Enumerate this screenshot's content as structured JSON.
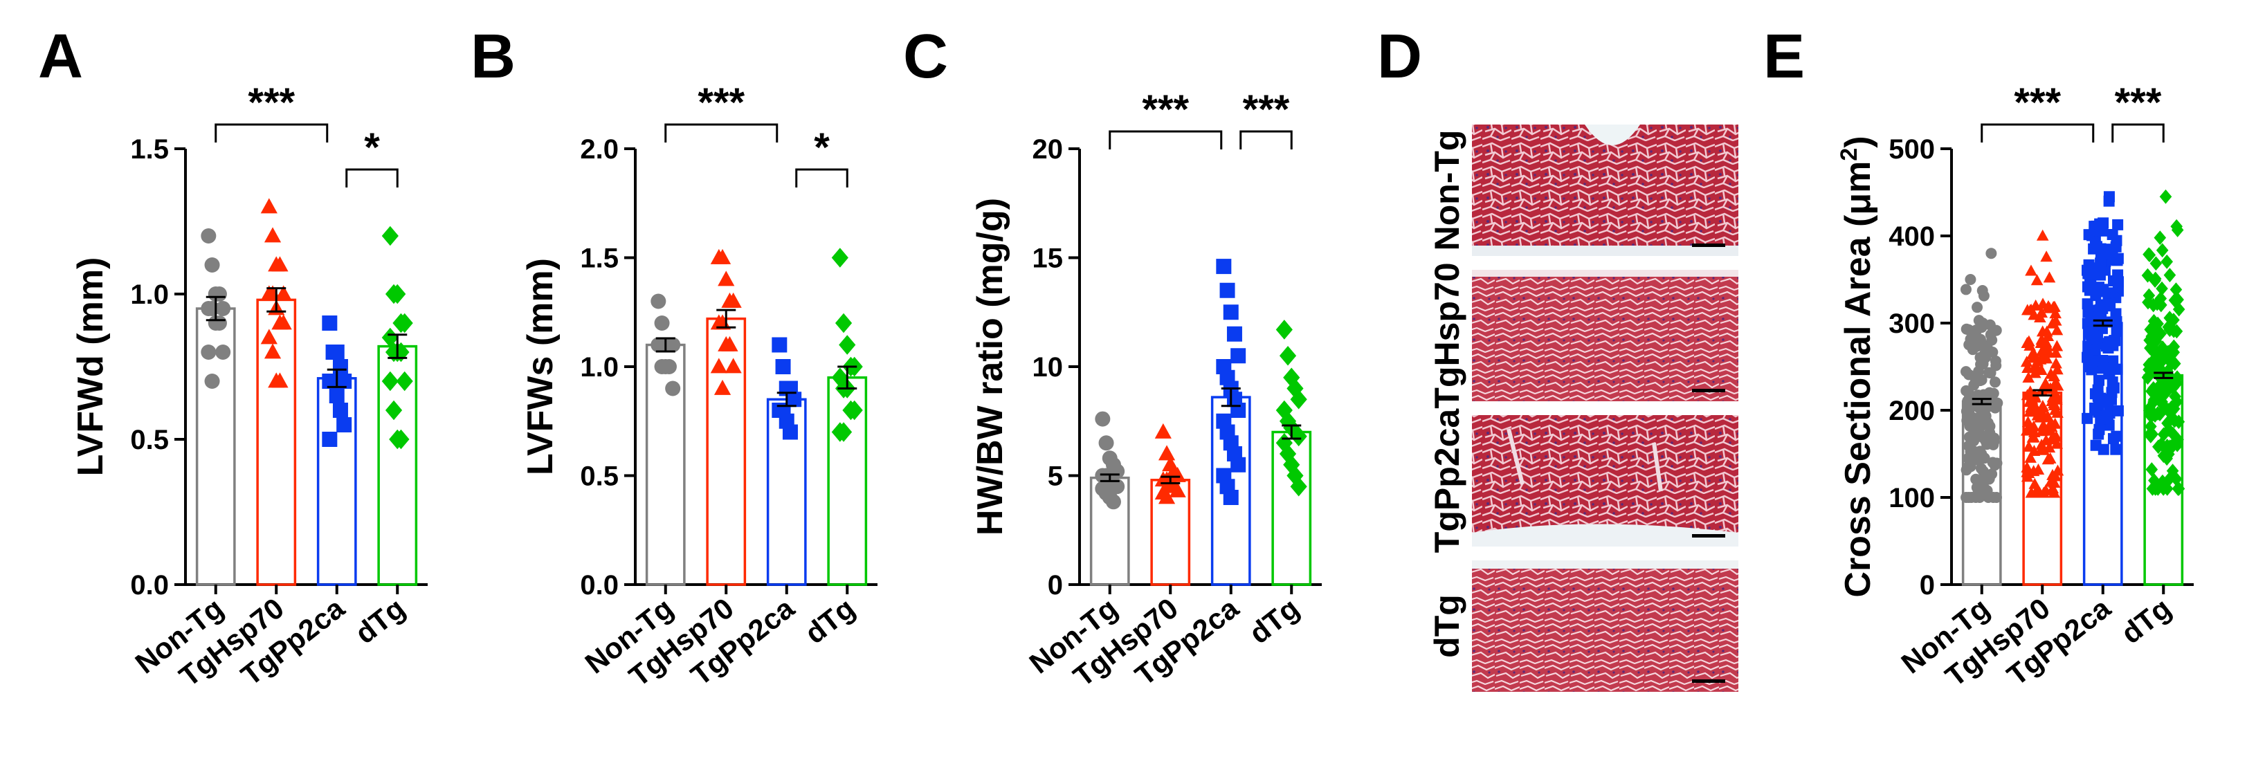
{
  "chart_data": [
    {
      "panel": "A",
      "type": "bar",
      "title": "",
      "xlabel": "",
      "ylabel": "LVFWd (mm)",
      "ylim": [
        0,
        1.5
      ],
      "yticks": [
        "0.0",
        "0.5",
        "1.0",
        "1.5"
      ],
      "categories": [
        "Non-Tg",
        "TgHsp70",
        "TgPp2ca",
        "dTg"
      ],
      "values": [
        0.95,
        0.98,
        0.71,
        0.82
      ],
      "errors": [
        0.04,
        0.04,
        0.03,
        0.04
      ],
      "points": [
        [
          1.2,
          1.1,
          1.0,
          1.0,
          0.95,
          0.95,
          0.95,
          0.9,
          0.9,
          0.8,
          0.8,
          0.7
        ],
        [
          1.3,
          1.2,
          1.1,
          1.1,
          1.0,
          1.0,
          1.0,
          0.95,
          0.9,
          0.9,
          0.85,
          0.8,
          0.7,
          0.7
        ],
        [
          0.9,
          0.8,
          0.8,
          0.75,
          0.7,
          0.7,
          0.7,
          0.65,
          0.6,
          0.55,
          0.5
        ],
        [
          1.2,
          1.0,
          1.0,
          0.9,
          0.9,
          0.85,
          0.8,
          0.8,
          0.8,
          0.7,
          0.7,
          0.6,
          0.5,
          0.5
        ]
      ],
      "significance": [
        {
          "from": 0,
          "to": 2,
          "label": "***"
        },
        {
          "from": 2,
          "to": 3,
          "label": "*"
        }
      ]
    },
    {
      "panel": "B",
      "type": "bar",
      "title": "",
      "xlabel": "",
      "ylabel": "LVFWs (mm)",
      "ylim": [
        0,
        2.0
      ],
      "yticks": [
        "0.0",
        "0.5",
        "1.0",
        "1.5",
        "2.0"
      ],
      "categories": [
        "Non-Tg",
        "TgHsp70",
        "TgPp2ca",
        "dTg"
      ],
      "values": [
        1.1,
        1.22,
        0.85,
        0.95
      ],
      "errors": [
        0.03,
        0.04,
        0.03,
        0.05
      ],
      "points": [
        [
          1.3,
          1.2,
          1.1,
          1.1,
          1.1,
          1.1,
          1.0,
          1.0,
          1.0,
          0.9
        ],
        [
          1.5,
          1.5,
          1.4,
          1.3,
          1.3,
          1.2,
          1.2,
          1.1,
          1.1,
          1.0,
          1.0,
          0.9
        ],
        [
          1.1,
          1.0,
          0.9,
          0.9,
          0.85,
          0.8,
          0.8,
          0.75,
          0.7
        ],
        [
          1.5,
          1.2,
          1.1,
          1.0,
          1.0,
          0.95,
          0.9,
          0.9,
          0.8,
          0.8,
          0.7,
          0.7
        ]
      ],
      "significance": [
        {
          "from": 0,
          "to": 2,
          "label": "***"
        },
        {
          "from": 2,
          "to": 3,
          "label": "*"
        }
      ]
    },
    {
      "panel": "C",
      "type": "bar",
      "title": "",
      "xlabel": "",
      "ylabel": "HW/BW ratio (mg/g)",
      "ylim": [
        0,
        20
      ],
      "yticks": [
        "0",
        "5",
        "10",
        "15",
        "20"
      ],
      "categories": [
        "Non-Tg",
        "TgHsp70",
        "TgPp2ca",
        "dTg"
      ],
      "values": [
        4.9,
        4.8,
        8.6,
        7.0
      ],
      "errors": [
        0.15,
        0.15,
        0.4,
        0.3
      ],
      "points": [
        [
          7.6,
          6.5,
          5.8,
          5.5,
          5.2,
          5.0,
          5.0,
          4.8,
          4.6,
          4.5,
          4.4,
          4.2,
          4.0,
          3.8
        ],
        [
          7.0,
          6.0,
          5.5,
          5.2,
          5.0,
          4.8,
          4.8,
          4.6,
          4.5,
          4.3,
          4.2,
          4.0
        ],
        [
          14.6,
          13.5,
          12.5,
          11.5,
          10.5,
          10.0,
          9.5,
          9.0,
          8.5,
          8.0,
          7.5,
          7.0,
          6.5,
          6.0,
          5.5,
          5.0,
          4.5,
          4.0
        ],
        [
          11.7,
          10.5,
          9.5,
          9.0,
          8.5,
          8.0,
          7.5,
          7.2,
          7.0,
          6.8,
          6.5,
          6.0,
          5.5,
          5.0,
          4.5
        ]
      ],
      "significance": [
        {
          "from": 0,
          "to": 2,
          "label": "***"
        },
        {
          "from": 2,
          "to": 3,
          "label": "***"
        }
      ]
    },
    {
      "panel": "E",
      "type": "bar",
      "title": "",
      "xlabel": "",
      "ylabel": "Cross Sectional Area (μm²)",
      "ylim": [
        0,
        500
      ],
      "yticks": [
        "0",
        "100",
        "200",
        "300",
        "400",
        "500"
      ],
      "categories": [
        "Non-Tg",
        "TgHsp70",
        "TgPp2ca",
        "dTg"
      ],
      "values": [
        210,
        220,
        300,
        240
      ],
      "errors": [
        3,
        3,
        3,
        3
      ],
      "point_ranges": [
        [
          100,
          380
        ],
        [
          105,
          400
        ],
        [
          155,
          445
        ],
        [
          110,
          445
        ]
      ],
      "significance": [
        {
          "from": 0,
          "to": 2,
          "label": "***"
        },
        {
          "from": 2,
          "to": 3,
          "label": "***"
        }
      ]
    }
  ],
  "panel_d": {
    "letter": "D",
    "rows": [
      "Non-Tg",
      "TgHsp70",
      "TgPp2ca",
      "dTg"
    ]
  },
  "panel_letters": [
    "A",
    "B",
    "C",
    "D",
    "E"
  ],
  "colors": [
    "#808080",
    "#ff2a00",
    "#0a3cf0",
    "#00c800"
  ],
  "markers": [
    "circle",
    "triangle",
    "square",
    "diamond"
  ]
}
